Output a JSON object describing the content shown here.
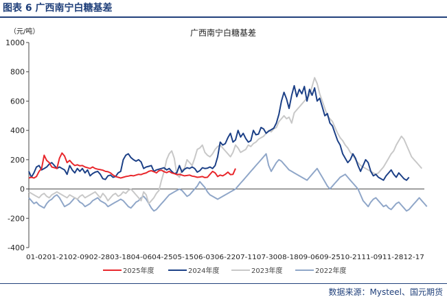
{
  "figure": {
    "caption": "图表 6  广西南宁白糖基差",
    "source": "数据来源：Mysteel、国元期货"
  },
  "colors": {
    "accent": "#1f3f7a",
    "s2025": "#e8262b",
    "s2024": "#1b3f86",
    "s2023": "#c8c8c8",
    "s2022": "#8fa6c8"
  },
  "chart_data": {
    "type": "line",
    "title": "广西南宁白糖基差",
    "ylabel": "（元/吨）",
    "ylim": [
      -400,
      1000
    ],
    "yticks": [
      -400,
      -200,
      0,
      200,
      400,
      600,
      800,
      1000
    ],
    "x_axis_text": "01-0201-2102-0902-2803-1804-0604-2505-1506-0306-2207-1107-3008-1809-0609-2510-2111-0911-2812-17",
    "grid": false,
    "legend_position": "bottom",
    "series": [
      {
        "name": "2025年度",
        "color": "#e8262b",
        "values": [
          75,
          80,
          75,
          85,
          120,
          140,
          230,
          195,
          180,
          150,
          145,
          140,
          210,
          245,
          225,
          180,
          195,
          175,
          160,
          165,
          158,
          160,
          150,
          145,
          140,
          150,
          140,
          135,
          132,
          128,
          120,
          118,
          110,
          95,
          85,
          80,
          75,
          80,
          85,
          88,
          92,
          90,
          95,
          100,
          98,
          105,
          110,
          120,
          125,
          118,
          110,
          125,
          128,
          118,
          112,
          120,
          110,
          105,
          98,
          100,
          95,
          90,
          92,
          95,
          88,
          85,
          80,
          82,
          85,
          78,
          80,
          100,
          120,
          110,
          85,
          95,
          90,
          100,
          115,
          98,
          100,
          140
        ]
      },
      {
        "name": "2024年度",
        "color": "#1b3f86",
        "values": [
          120,
          80,
          110,
          150,
          160,
          130,
          140,
          150,
          170,
          180,
          160,
          140,
          150,
          140,
          130,
          100,
          160,
          130,
          110,
          140,
          120,
          140,
          110,
          130,
          90,
          105,
          115,
          120,
          100,
          70,
          65,
          90,
          95,
          80,
          85,
          110,
          120,
          200,
          230,
          240,
          215,
          200,
          190,
          200,
          185,
          140,
          150,
          155,
          160,
          120,
          130,
          135,
          140,
          145,
          130,
          140,
          120,
          105,
          110,
          160,
          115,
          135,
          145,
          140,
          150,
          140,
          115,
          125,
          145,
          140,
          142,
          150,
          140,
          160,
          220,
          320,
          300,
          310,
          350,
          380,
          320,
          335,
          400,
          355,
          380,
          345,
          320,
          330,
          400,
          370,
          375,
          420,
          410,
          380,
          395,
          405,
          415,
          450,
          510,
          600,
          660,
          615,
          550,
          640,
          705,
          630,
          680,
          650,
          700,
          600,
          680,
          640,
          690,
          600,
          620,
          560,
          500,
          515,
          450,
          430,
          380,
          330,
          300,
          240,
          210,
          180,
          200,
          240,
          210,
          160,
          120,
          160,
          200,
          180,
          120,
          90,
          100,
          80,
          70,
          60,
          90,
          110,
          130,
          100,
          80,
          110,
          90,
          70,
          60,
          80
        ]
      },
      {
        "name": "2023年度",
        "color": "#c8c8c8",
        "values": [
          -20,
          -30,
          -40,
          -50,
          -60,
          -40,
          -30,
          -50,
          -60,
          -40,
          -30,
          -20,
          -30,
          -40,
          -50,
          -60,
          -40,
          -50,
          -60,
          -70,
          -50,
          -40,
          -60,
          -50,
          -40,
          -30,
          -20,
          -40,
          -60,
          -30,
          -50,
          -80,
          -60,
          -40,
          -30,
          -50,
          -40,
          -20,
          -30,
          -10,
          0,
          -20,
          -40,
          -60,
          -80,
          -20,
          -40,
          -100,
          -80,
          -60,
          -30,
          -10,
          60,
          120,
          200,
          240,
          260,
          210,
          100,
          80,
          130,
          140,
          200,
          180,
          160,
          210,
          270,
          280,
          300,
          250,
          230,
          220,
          240,
          270,
          290,
          300,
          280,
          260,
          240,
          220,
          250,
          300,
          280,
          250,
          260,
          270,
          300,
          290,
          310,
          320,
          340,
          350,
          360,
          380,
          400,
          390,
          410,
          420,
          460,
          480,
          500,
          480,
          490,
          450,
          520,
          540,
          560,
          580,
          600,
          620,
          640,
          700,
          760,
          720,
          650,
          600,
          550,
          500,
          480,
          460,
          420,
          380,
          350,
          330,
          300,
          280,
          250,
          230,
          200,
          180,
          160,
          150,
          140,
          130,
          120,
          110,
          100,
          110,
          130,
          150,
          180,
          210,
          240,
          260,
          300,
          330,
          360,
          340,
          300,
          260,
          220,
          200,
          180,
          160,
          140
        ]
      },
      {
        "name": "2022年度",
        "color": "#8fa6c8",
        "values": [
          -60,
          -80,
          -100,
          -90,
          -110,
          -120,
          -130,
          -100,
          -80,
          -70,
          -50,
          -40,
          -60,
          -90,
          -120,
          -110,
          -100,
          -80,
          -60,
          -70,
          -90,
          -100,
          -120,
          -110,
          -100,
          -80,
          -70,
          -60,
          -80,
          -90,
          -100,
          -120,
          -110,
          -100,
          -90,
          -80,
          -70,
          -80,
          -100,
          -120,
          -130,
          -110,
          -90,
          -80,
          -60,
          -50,
          -70,
          -100,
          -130,
          -150,
          -140,
          -120,
          -100,
          -80,
          -60,
          -40,
          -30,
          -20,
          -10,
          0,
          -10,
          -30,
          -50,
          -40,
          -20,
          0,
          20,
          50,
          30,
          10,
          -20,
          -40,
          -50,
          -60,
          -70,
          -60,
          -50,
          -40,
          -30,
          -20,
          -10,
          0,
          20,
          40,
          60,
          80,
          100,
          120,
          140,
          160,
          180,
          200,
          220,
          240,
          160,
          120,
          150,
          180,
          200,
          190,
          170,
          150,
          130,
          120,
          110,
          100,
          90,
          80,
          70,
          60,
          80,
          100,
          120,
          140,
          110,
          80,
          50,
          20,
          0,
          20,
          40,
          60,
          80,
          90,
          100,
          80,
          60,
          40,
          20,
          0,
          -40,
          -80,
          -100,
          -120,
          -90,
          -70,
          -60,
          -80,
          -100,
          -120,
          -110,
          -130,
          -140,
          -120,
          -100,
          -90,
          -110,
          -130,
          -150,
          -140,
          -120,
          -100,
          -80,
          -60,
          -80,
          -100,
          -120
        ]
      }
    ]
  }
}
